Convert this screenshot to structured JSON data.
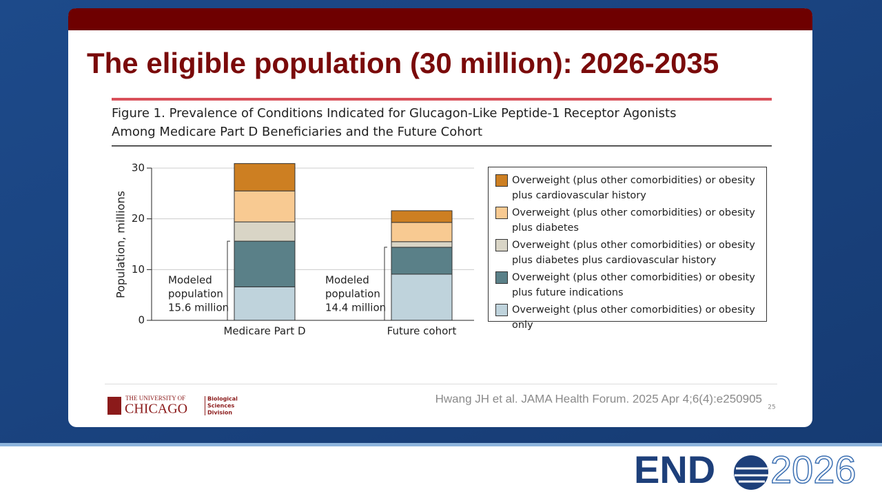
{
  "slide": {
    "title": "The eligible population (30 million): 2026-2035",
    "figure_title": [
      "Figure 1. Prevalence of Conditions Indicated for Glucagon-Like Peptide-1 Receptor Agonists",
      "Among Medicare Part D Beneficiaries and the Future Cohort"
    ],
    "citation": "Hwang JH et al. JAMA Health Forum. 2025 Apr 4;6(4):e250905",
    "page_number": "25",
    "university": {
      "line1": "THE UNIVERSITY OF",
      "line2": "CHICAGO",
      "division": [
        "Biological",
        "Sciences",
        "Division"
      ]
    },
    "event_logo": {
      "prefix": "END",
      "suffix": "2026"
    }
  },
  "chart_data": {
    "type": "stacked_bar",
    "y_label": "Population, millions",
    "categories": [
      "Medicare Part D",
      "Future cohort"
    ],
    "series": [
      {
        "name": "Overweight (plus other comorbidities) or obesity only",
        "color": "#bfd3dc",
        "values": [
          6.6,
          9.1
        ]
      },
      {
        "name": "Overweight (plus other comorbidities) or obesity plus future indications",
        "color": "#5a8088",
        "values": [
          9.0,
          5.3
        ]
      },
      {
        "name": "Overweight (plus other comorbidities) or obesity plus diabetes plus cardiovascular history",
        "color": "#d9d5c6",
        "values": [
          3.8,
          1.1
        ]
      },
      {
        "name": "Overweight (plus other comorbidities) or obesity plus diabetes",
        "color": "#f8ca92",
        "values": [
          6.1,
          3.8
        ]
      },
      {
        "name": "Overweight (plus other comorbidities) or obesity plus cardiovascular history",
        "color": "#cd7f22",
        "values": [
          5.4,
          2.3
        ]
      }
    ],
    "annotations": [
      {
        "lines": [
          "Modeled",
          "population",
          "15.6 million"
        ]
      },
      {
        "lines": [
          "Modeled",
          "population",
          "14.4 million"
        ]
      }
    ],
    "ylim": [
      0,
      30
    ],
    "yticks": [
      0,
      10,
      20,
      30
    ],
    "grid": true,
    "legend": "right"
  }
}
